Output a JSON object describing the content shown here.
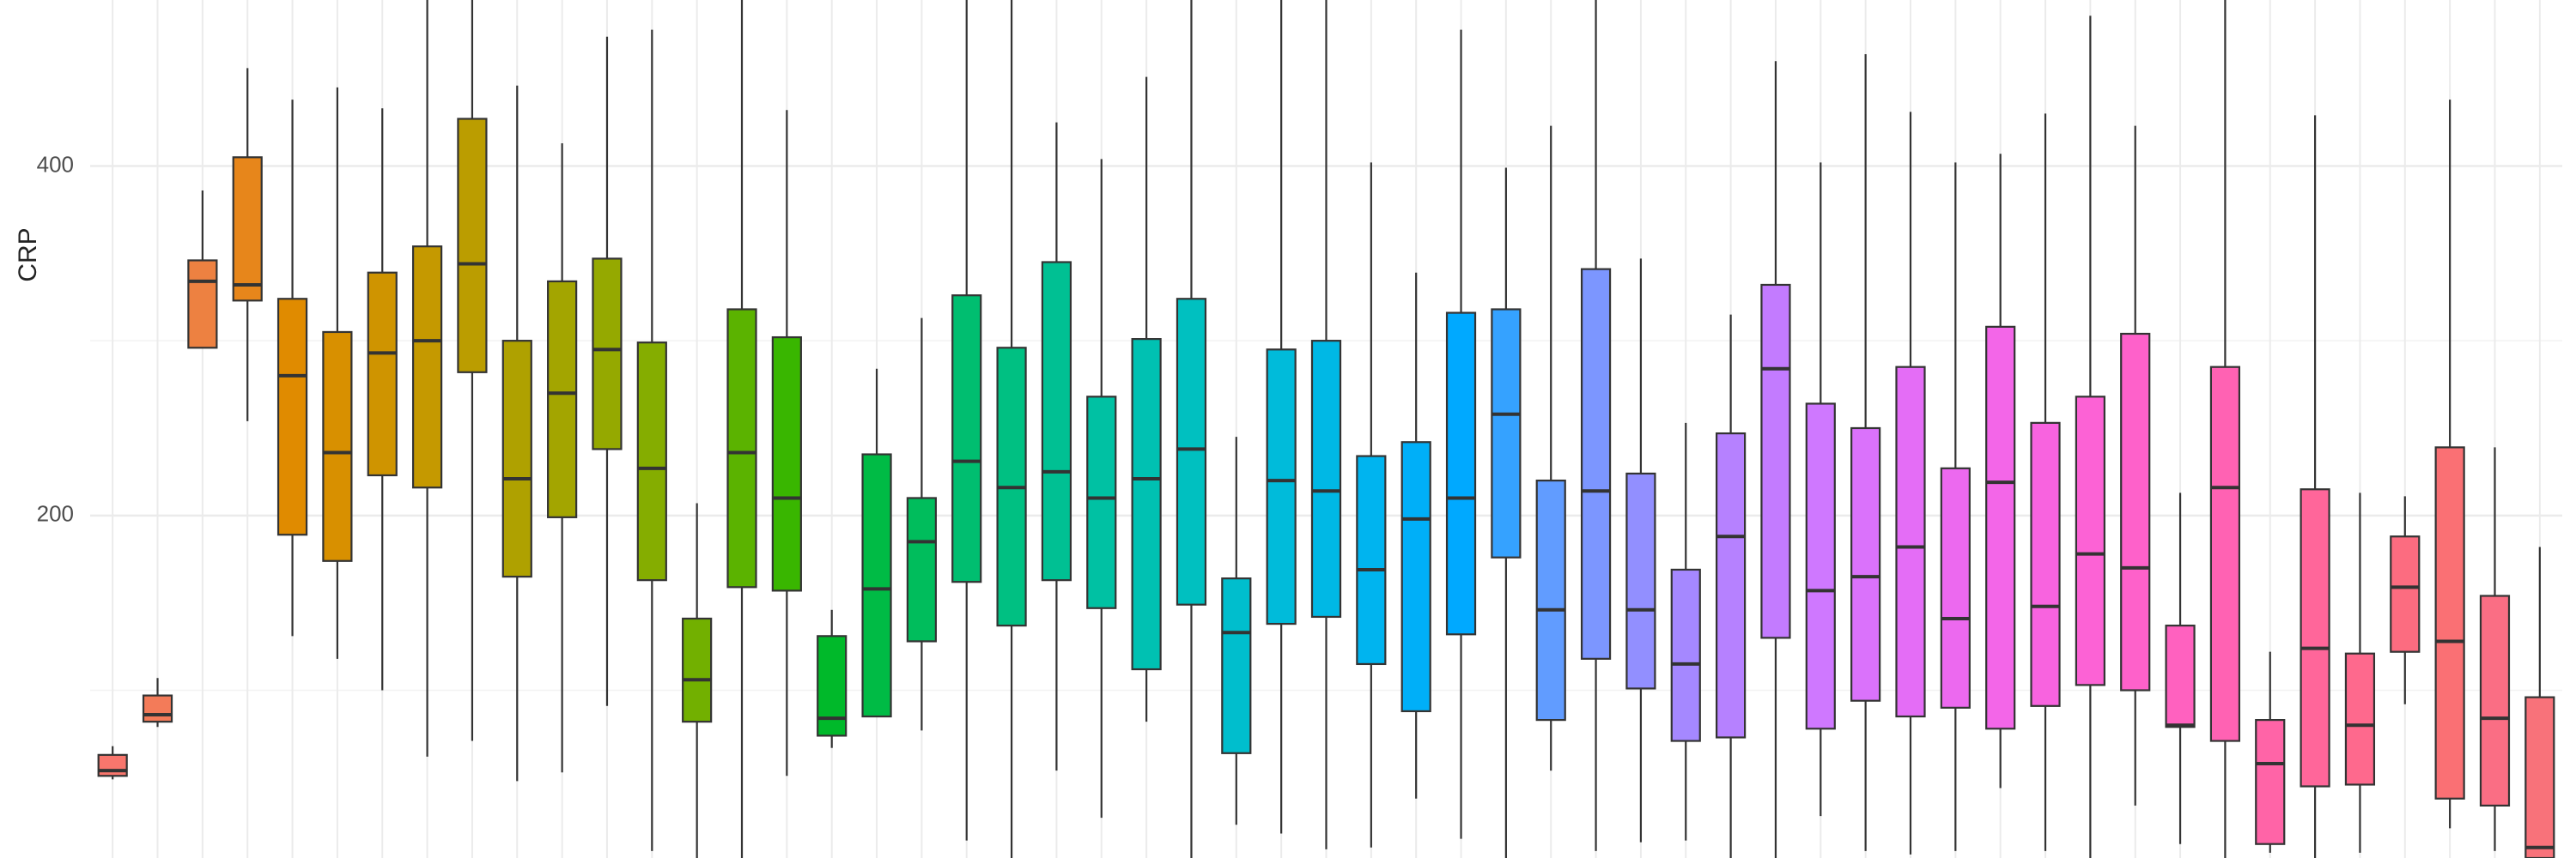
{
  "chart_data": {
    "type": "boxplot",
    "y_label": "CRP",
    "ylim": [
      4,
      495
    ],
    "yticks": [
      200,
      400
    ],
    "y_minor_grid": [
      100,
      300
    ],
    "grid": true,
    "categories": [
      null,
      null,
      null,
      null,
      null,
      null,
      null,
      null,
      null,
      null,
      null,
      null,
      null,
      null,
      null,
      null,
      null,
      null,
      null,
      null,
      null,
      null,
      null,
      null,
      null,
      null,
      null,
      null,
      null,
      null,
      null,
      null,
      null,
      null,
      null,
      null,
      null,
      null,
      null,
      null,
      null,
      null,
      null,
      null,
      null,
      null,
      null,
      null,
      null,
      null,
      null,
      null,
      null,
      null,
      null
    ],
    "low": [
      49,
      79,
      296,
      254,
      131,
      118,
      100,
      62,
      71,
      48,
      53,
      91,
      8,
      4,
      4,
      51,
      67,
      85,
      77,
      14,
      4,
      54,
      27,
      82,
      4,
      23,
      18,
      9,
      10,
      38,
      15,
      4,
      54,
      8,
      13,
      14,
      4,
      4,
      28,
      8,
      6,
      8,
      44,
      8,
      4,
      34,
      12,
      4,
      7,
      4,
      7,
      92,
      21,
      8,
      4
    ],
    "q1": [
      51,
      82,
      296,
      323,
      189,
      174,
      223,
      216,
      282,
      165,
      199,
      238,
      163,
      82,
      159,
      157,
      74,
      85,
      128,
      162,
      137,
      163,
      147,
      112,
      149,
      64,
      138,
      142,
      115,
      88,
      132,
      176,
      83,
      118,
      101,
      71,
      73,
      130,
      78,
      94,
      85,
      90,
      78,
      91,
      103,
      100,
      79,
      71,
      12,
      45,
      46,
      122,
      38,
      34,
      4
    ],
    "median": [
      54,
      86,
      334,
      332,
      280,
      236,
      293,
      300,
      344,
      221,
      270,
      295,
      227,
      106,
      236,
      210,
      84,
      158,
      185,
      231,
      216,
      225,
      210,
      221,
      238,
      133,
      220,
      214,
      169,
      198,
      210,
      258,
      146,
      214,
      146,
      115,
      188,
      284,
      157,
      165,
      182,
      141,
      219,
      148,
      178,
      170,
      80,
      216,
      58,
      124,
      80,
      159,
      128,
      84,
      10
    ],
    "q3": [
      63,
      97,
      346,
      405,
      324,
      305,
      339,
      354,
      427,
      300,
      334,
      347,
      299,
      141,
      318,
      302,
      131,
      235,
      210,
      326,
      296,
      345,
      268,
      301,
      324,
      164,
      295,
      300,
      234,
      242,
      316,
      318,
      220,
      341,
      224,
      169,
      247,
      332,
      264,
      250,
      285,
      227,
      308,
      253,
      268,
      304,
      137,
      285,
      83,
      215,
      121,
      188,
      239,
      154,
      96
    ],
    "high": [
      68,
      107,
      386,
      456,
      438,
      445,
      433,
      495,
      495,
      446,
      413,
      474,
      478,
      207,
      495,
      432,
      146,
      284,
      313,
      495,
      495,
      425,
      404,
      451,
      495,
      245,
      495,
      495,
      402,
      339,
      478,
      399,
      423,
      495,
      347,
      253,
      315,
      460,
      402,
      464,
      431,
      402,
      407,
      430,
      486,
      423,
      213,
      495,
      122,
      429,
      213,
      211,
      438,
      239,
      182
    ],
    "colors": [
      "#F8766D",
      "#F37B59",
      "#ED8141",
      "#E7861B",
      "#E08B00",
      "#D89000",
      "#CF9400",
      "#C59900",
      "#BB9D00",
      "#AFA100",
      "#A3A500",
      "#95A900",
      "#85AD00",
      "#72B000",
      "#5BB300",
      "#39B600",
      "#00B92A",
      "#00BB45",
      "#00BD5C",
      "#00BE70",
      "#00C082",
      "#00C093",
      "#00C1A3",
      "#00C1B2",
      "#00C0C0",
      "#00BECD",
      "#00BBDA",
      "#00B8E5",
      "#00B4EF",
      "#00AFF8",
      "#00A9FF",
      "#35A2FF",
      "#619CFF",
      "#7C96FF",
      "#928FFF",
      "#A588FF",
      "#B681FF",
      "#C37BFF",
      "#CF78FF",
      "#DA72FB",
      "#E46DF6",
      "#EC69EF",
      "#F366E8",
      "#F863DF",
      "#FC62D5",
      "#FE61CA",
      "#FF61BF",
      "#FF62B3",
      "#FF64A7",
      "#FF669A",
      "#FE698D",
      "#FC6C80",
      "#FA7074",
      "#FA6E84",
      "#F8727A"
    ]
  }
}
